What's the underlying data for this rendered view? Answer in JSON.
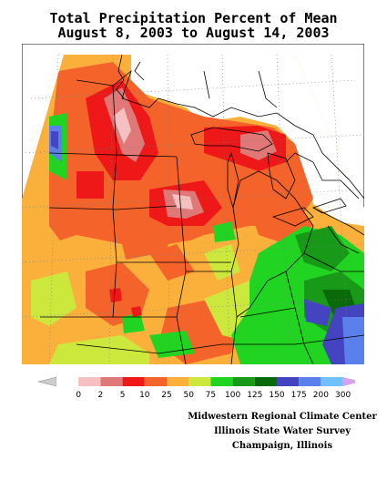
{
  "title_line1": "Total Precipitation Percent of Mean",
  "title_line2": "August 8, 2003 to August 14, 2003",
  "legend": {
    "colors": [
      "#ffffff",
      "#f5c0c0",
      "#e07878",
      "#ee1818",
      "#f4642a",
      "#fcb03c",
      "#cce83c",
      "#22d422",
      "#189a18",
      "#0a6a0a",
      "#4444c0",
      "#5a80ee",
      "#70c0ff"
    ],
    "underflow_color": "#cccccc",
    "overflow_color": "#d8a0f0",
    "ticks": [
      "0",
      "2",
      "5",
      "10",
      "25",
      "50",
      "75",
      "100",
      "125",
      "150",
      "175",
      "200",
      "300"
    ]
  },
  "credits": {
    "line1": "Midwestern Regional Climate Center",
    "line2": "Illinois State Water Survey",
    "line3": "Champaign, Illinois"
  }
}
